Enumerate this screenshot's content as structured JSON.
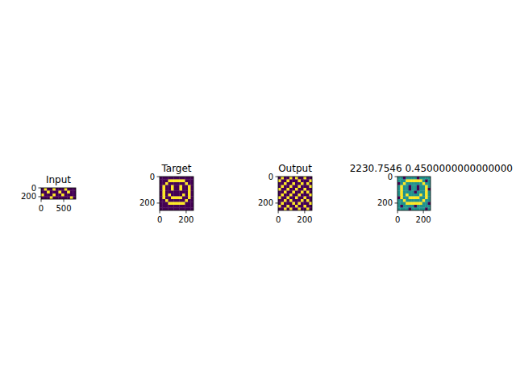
{
  "chart_data": [
    {
      "type": "image",
      "title": "Input",
      "xlim": [
        -0.5,
        767.5
      ],
      "ylim": [
        255.5,
        -0.5
      ],
      "xticks": [
        0,
        500
      ],
      "yticks": [
        0,
        200
      ],
      "clim": [
        0,
        1
      ],
      "cells": [
        [
          0,
          1,
          0,
          0,
          1,
          0,
          0,
          0,
          1,
          0,
          0,
          0
        ],
        [
          0,
          0,
          1,
          0,
          0,
          0,
          1,
          0,
          0,
          1,
          0,
          0
        ],
        [
          1,
          0,
          0,
          0,
          1,
          0,
          0,
          1,
          0,
          0,
          0,
          0
        ],
        [
          0,
          0,
          0,
          1,
          0,
          0,
          0,
          0,
          0,
          0,
          1,
          0
        ]
      ]
    },
    {
      "type": "image",
      "title": "Target",
      "xlim": [
        -0.5,
        255.5
      ],
      "ylim": [
        255.5,
        -0.5
      ],
      "xticks": [
        0,
        200
      ],
      "yticks": [
        0,
        200
      ],
      "clim": [
        0,
        1
      ],
      "cells": [
        [
          0,
          0,
          0,
          0,
          0,
          0,
          0,
          0,
          0,
          0,
          0,
          0
        ],
        [
          0,
          0,
          0,
          1,
          1,
          1,
          1,
          1,
          1,
          0,
          0,
          0
        ],
        [
          0,
          0,
          1,
          0,
          0,
          0,
          0,
          0,
          0,
          1,
          0,
          0
        ],
        [
          0,
          1,
          0,
          0,
          1,
          0,
          0,
          1,
          0,
          0,
          1,
          0
        ],
        [
          0,
          1,
          0,
          0,
          1,
          0,
          0,
          1,
          0,
          0,
          1,
          0
        ],
        [
          0,
          1,
          0,
          0,
          0,
          0,
          0,
          0,
          0,
          0,
          1,
          0
        ],
        [
          0,
          1,
          0,
          1,
          0,
          0,
          0,
          0,
          1,
          0,
          1,
          0
        ],
        [
          0,
          1,
          0,
          0,
          1,
          1,
          1,
          1,
          0,
          0,
          1,
          0
        ],
        [
          0,
          0,
          1,
          0,
          0,
          0,
          0,
          0,
          0,
          1,
          0,
          0
        ],
        [
          0,
          0,
          0,
          1,
          1,
          1,
          1,
          1,
          1,
          0,
          0,
          0
        ],
        [
          0,
          0,
          0,
          0,
          0,
          0,
          0,
          0,
          0,
          0,
          0,
          0
        ],
        [
          0,
          0,
          0,
          0,
          0,
          0,
          0,
          0,
          0,
          0,
          0,
          0
        ]
      ]
    },
    {
      "type": "image",
      "title": "Output",
      "xlim": [
        -0.5,
        255.5
      ],
      "ylim": [
        255.5,
        -0.5
      ],
      "xticks": [
        0,
        200
      ],
      "yticks": [
        0,
        200
      ],
      "clim": [
        0,
        1
      ],
      "cells": [
        [
          0,
          1,
          0,
          0,
          1,
          0,
          1,
          0,
          0,
          1,
          0,
          0
        ],
        [
          1,
          0,
          0,
          1,
          0,
          0,
          0,
          1,
          0,
          0,
          0,
          1
        ],
        [
          0,
          0,
          1,
          0,
          0,
          1,
          0,
          0,
          1,
          0,
          1,
          0
        ],
        [
          0,
          1,
          0,
          0,
          1,
          0,
          0,
          1,
          0,
          0,
          0,
          1
        ],
        [
          1,
          0,
          0,
          1,
          0,
          0,
          1,
          0,
          0,
          1,
          0,
          0
        ],
        [
          0,
          0,
          1,
          0,
          0,
          1,
          0,
          0,
          1,
          0,
          1,
          0
        ],
        [
          0,
          1,
          0,
          0,
          1,
          0,
          0,
          1,
          0,
          0,
          0,
          1
        ],
        [
          1,
          0,
          0,
          1,
          0,
          0,
          1,
          0,
          0,
          1,
          0,
          0
        ],
        [
          0,
          0,
          1,
          0,
          1,
          0,
          0,
          0,
          1,
          0,
          1,
          0
        ],
        [
          0,
          1,
          0,
          0,
          0,
          1,
          0,
          1,
          0,
          0,
          0,
          1
        ],
        [
          1,
          0,
          0,
          1,
          0,
          0,
          1,
          0,
          0,
          1,
          0,
          0
        ],
        [
          0,
          0,
          1,
          0,
          1,
          0,
          0,
          1,
          0,
          0,
          1,
          0
        ]
      ]
    },
    {
      "type": "image",
      "title": "2230.7546 0.4500000000000000",
      "xlim": [
        -0.5,
        255.5
      ],
      "ylim": [
        255.5,
        -0.5
      ],
      "xticks": [
        0,
        200
      ],
      "yticks": [
        0,
        200
      ],
      "clim": [
        0,
        1
      ],
      "cells": [
        [
          0.5,
          0.5,
          0,
          0.5,
          0.5,
          0.5,
          0.5,
          0,
          0.5,
          0.5,
          0.5,
          0.5
        ],
        [
          0.5,
          0.5,
          0.5,
          1,
          1,
          1,
          1,
          1,
          1,
          0.5,
          0,
          0.5
        ],
        [
          0,
          0.5,
          1,
          0.5,
          0.5,
          0.5,
          0.5,
          0.5,
          0.5,
          1,
          0.5,
          0.5
        ],
        [
          0.5,
          1,
          0.5,
          0.5,
          0,
          0.5,
          0.5,
          0,
          0.5,
          0.5,
          1,
          0.5
        ],
        [
          0.5,
          1,
          0.5,
          0.5,
          0,
          0.5,
          0.5,
          0,
          0.5,
          0.5,
          1,
          0
        ],
        [
          0.5,
          1,
          0.5,
          0.5,
          0.5,
          0.5,
          0,
          0.5,
          0.5,
          0.5,
          1,
          0.5
        ],
        [
          0.5,
          1,
          0.5,
          1,
          0.5,
          0.5,
          0.5,
          0.5,
          1,
          0.5,
          1,
          0.5
        ],
        [
          0,
          1,
          0.5,
          0.5,
          1,
          1,
          1,
          1,
          0.5,
          0.5,
          1,
          0.5
        ],
        [
          0.5,
          0.5,
          1,
          0.5,
          0.5,
          0.5,
          0.5,
          0.5,
          0.5,
          1,
          0.5,
          0.5
        ],
        [
          0.5,
          0.5,
          0.5,
          1,
          1,
          1,
          1,
          1,
          1,
          0.5,
          0.5,
          0
        ],
        [
          0.5,
          0,
          0.5,
          0.5,
          0.5,
          0.5,
          0,
          0.5,
          0.5,
          0.5,
          0.5,
          0.5
        ],
        [
          0.5,
          0.5,
          0.5,
          0.5,
          0,
          0.5,
          0.5,
          0.5,
          0.5,
          0.5,
          0,
          0.5
        ]
      ]
    }
  ]
}
